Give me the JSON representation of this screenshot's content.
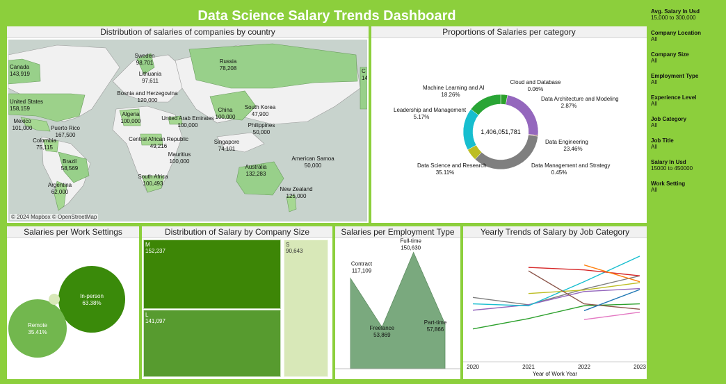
{
  "title": "Data Science Salary Trends Dashboard",
  "colors": {
    "background": "#8ccf3c"
  },
  "filters": [
    {
      "name": "Avg. Salary In Usd",
      "value": "15,000 to 300,000"
    },
    {
      "name": "Company Location",
      "value": "All"
    },
    {
      "name": "Company Size",
      "value": "All"
    },
    {
      "name": "Employment Type",
      "value": "All"
    },
    {
      "name": "Experience Level",
      "value": "All"
    },
    {
      "name": "Job Category",
      "value": "All"
    },
    {
      "name": "Job Title",
      "value": "All"
    },
    {
      "name": "Salary In Usd",
      "value": "15000 to 450000"
    },
    {
      "name": "Work Setting",
      "value": "All"
    }
  ],
  "panels": {
    "map": "Distribution of salaries of companies by country",
    "donut": "Proportions of Salaries per category",
    "work": "Salaries per Work Settings",
    "size": "Distribution of Salary by Company Size",
    "emp": "Salaries per Employment Type",
    "yearly": "Yearly Trends of Salary by Job Category"
  },
  "map_attribution": "© 2024 Mapbox © OpenStreetMap",
  "chart_data": [
    {
      "type": "map",
      "countries": [
        {
          "name": "Canada",
          "value": "143,919"
        },
        {
          "name": "United States",
          "value": "158,159"
        },
        {
          "name": "Mexico",
          "value": "101,000"
        },
        {
          "name": "Puerto Rico",
          "value": "167,500"
        },
        {
          "name": "Colombia",
          "value": "75,115"
        },
        {
          "name": "Brazil",
          "value": "58,569"
        },
        {
          "name": "Argentina",
          "value": "62,000"
        },
        {
          "name": "Sweden",
          "value": "98,701"
        },
        {
          "name": "Lithuania",
          "value": "97,611"
        },
        {
          "name": "Bosnia and Herzegovina",
          "value": "120,000"
        },
        {
          "name": "Algeria",
          "value": "100,000"
        },
        {
          "name": "Central African Republic",
          "value": "49,216"
        },
        {
          "name": "South Africa",
          "value": "100,493"
        },
        {
          "name": "Mauritius",
          "value": "100,000"
        },
        {
          "name": "United Arab Emirates",
          "value": "100,000"
        },
        {
          "name": "Russia",
          "value": "78,208"
        },
        {
          "name": "China",
          "value": "100,000"
        },
        {
          "name": "South Korea",
          "value": "47,900"
        },
        {
          "name": "Philippines",
          "value": "50,000"
        },
        {
          "name": "Singapore",
          "value": "74,101"
        },
        {
          "name": "Australia",
          "value": "132,283"
        },
        {
          "name": "New Zealand",
          "value": "125,000"
        },
        {
          "name": "American Samoa",
          "value": "50,000"
        },
        {
          "name": "C",
          "value": "14"
        }
      ]
    },
    {
      "type": "pie",
      "total": "1,406,051,781",
      "slices": [
        {
          "name": "Cloud and Database",
          "pct": 0.06,
          "color": "#1f77b4"
        },
        {
          "name": "Data Architecture and Modeling",
          "pct": 2.87,
          "color": "#2ca02c"
        },
        {
          "name": "Data Engineering",
          "pct": 23.46,
          "color": "#9467bd"
        },
        {
          "name": "Data Management and Strategy",
          "pct": 0.45,
          "color": "#8c564b"
        },
        {
          "name": "Data Science and Research",
          "pct": 35.11,
          "color": "#7f7f7f"
        },
        {
          "name": "Leadership and Management",
          "pct": 5.17,
          "color": "#bcbd22"
        },
        {
          "name": "Machine Learning and AI",
          "pct": 18.26,
          "color": "#17becf"
        },
        {
          "name": "",
          "pct": 14.62,
          "color": "#29a535"
        }
      ],
      "labels": [
        {
          "name": "Cloud and Database",
          "value": "0.06%"
        },
        {
          "name": "Data Architecture and Modeling",
          "value": "2.87%"
        },
        {
          "name": "Data Engineering",
          "value": "23.46%"
        },
        {
          "name": "Data Management and Strategy",
          "value": "0.45%"
        },
        {
          "name": "Data Science and Research",
          "value": "35.11%"
        },
        {
          "name": "Leadership and Management",
          "value": "5.17%"
        },
        {
          "name": "Machine Learning and AI",
          "value": "18.26%"
        }
      ]
    },
    {
      "type": "bubble",
      "items": [
        {
          "name": "In-person",
          "value": "63.38%"
        },
        {
          "name": "Remote",
          "value": "35.41%"
        },
        {
          "name": "",
          "value": ""
        }
      ]
    },
    {
      "type": "treemap",
      "items": [
        {
          "name": "M",
          "value": "152,237"
        },
        {
          "name": "L",
          "value": "141,097"
        },
        {
          "name": "S",
          "value": "90,643"
        }
      ]
    },
    {
      "type": "area",
      "categories": [
        "Contract",
        "Freelance",
        "Full-time",
        "Part-time"
      ],
      "values": [
        117109,
        53869,
        150630,
        57866
      ],
      "value_labels": [
        "117,109",
        "53,869",
        "150,630",
        "57,866"
      ]
    },
    {
      "type": "line",
      "xlabel": "Year of Work Year",
      "x": [
        "2020",
        "2021",
        "2022",
        "2023"
      ],
      "series": [
        {
          "color": "#7f7f7f",
          "values": [
            148000,
            133000,
            165000,
            192000
          ]
        },
        {
          "color": "#9467bd",
          "values": [
            122000,
            133000,
            160000,
            166000
          ]
        },
        {
          "color": "#17becf",
          "values": [
            135000,
            131000,
            180000,
            232000
          ]
        },
        {
          "color": "#2ca02c",
          "values": [
            84000,
            105000,
            131000,
            135000
          ]
        },
        {
          "color": "#bcbd22",
          "values": [
            null,
            156000,
            163000,
            178000
          ]
        },
        {
          "color": "#d62728",
          "values": [
            null,
            209000,
            204000,
            192000
          ]
        },
        {
          "color": "#8c564b",
          "values": [
            null,
            202000,
            135000,
            124000
          ]
        },
        {
          "color": "#1f77b4",
          "values": [
            null,
            null,
            121000,
            164000
          ]
        },
        {
          "color": "#ff7f0e",
          "values": [
            null,
            null,
            214000,
            180000
          ]
        },
        {
          "color": "#e377c2",
          "values": [
            null,
            null,
            103000,
            118000
          ]
        }
      ],
      "ylim": [
        20000,
        260000
      ]
    }
  ]
}
